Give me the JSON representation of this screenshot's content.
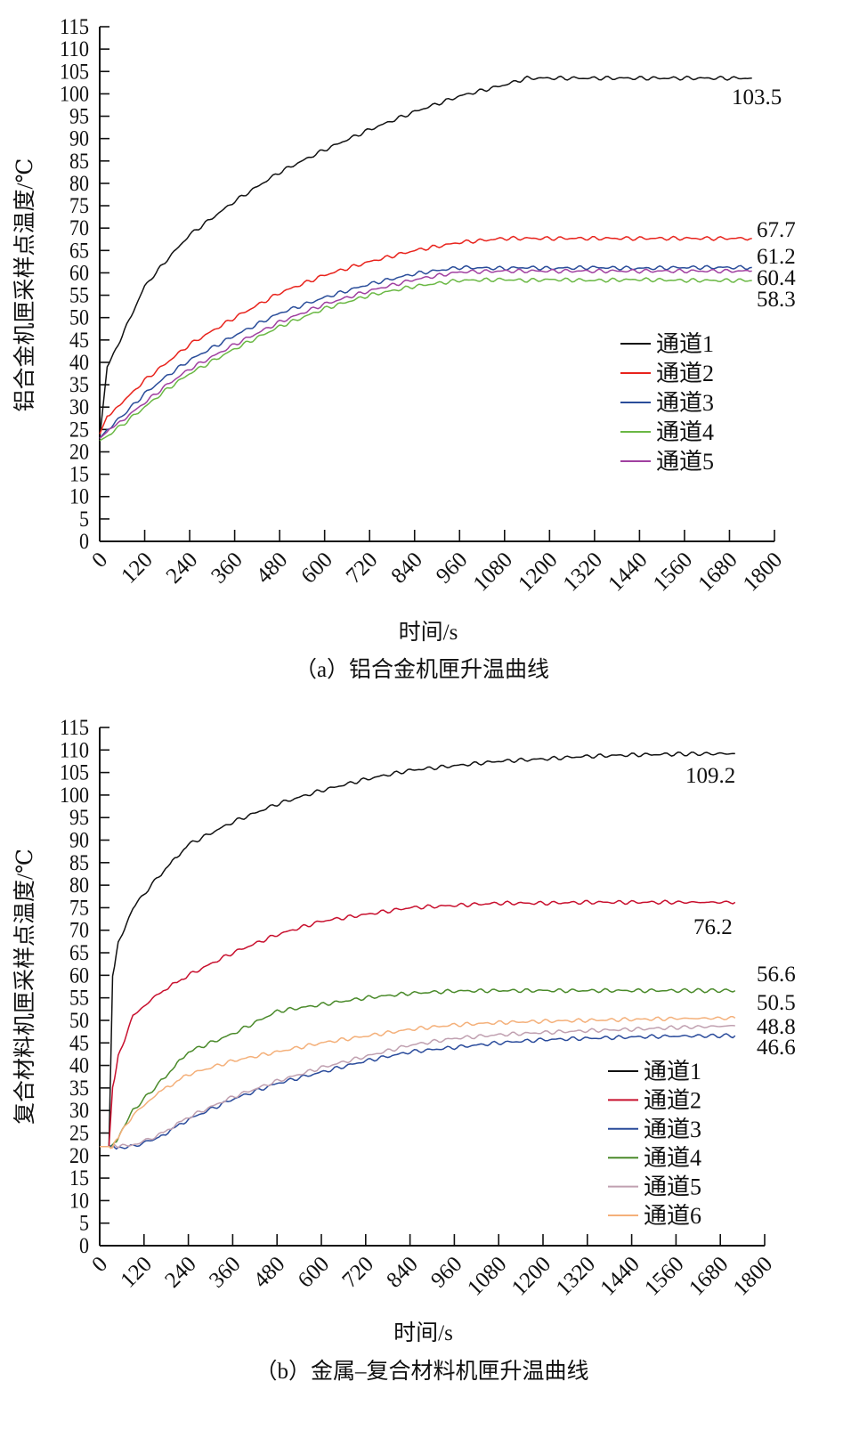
{
  "chart_data": [
    {
      "type": "line",
      "caption": "（a）铝合金机匣升温曲线",
      "xlabel": "时间/s",
      "ylabel": "铝合金机匣采样点温度/℃",
      "xlim": [
        0,
        1800
      ],
      "ylim": [
        0,
        115
      ],
      "xticks": [
        0,
        120,
        240,
        360,
        480,
        600,
        720,
        840,
        960,
        1080,
        1200,
        1320,
        1440,
        1560,
        1680,
        1800
      ],
      "yticks": [
        0,
        5,
        10,
        15,
        20,
        25,
        30,
        35,
        40,
        45,
        50,
        55,
        60,
        65,
        70,
        75,
        80,
        85,
        90,
        95,
        100,
        105,
        110,
        115
      ],
      "grid": false,
      "legend_position": "right-middle",
      "x": [
        0,
        20,
        60,
        120,
        180,
        240,
        360,
        480,
        600,
        720,
        840,
        960,
        1080,
        1140,
        1200,
        1320,
        1440,
        1560,
        1680,
        1740
      ],
      "series": [
        {
          "name": "通道1",
          "color": "#111111",
          "end_label": "103.5",
          "values": [
            23,
            39,
            46,
            57,
            63,
            68.5,
            76,
            82.5,
            87.5,
            92,
            96,
            99.5,
            102,
            103.5,
            103.5,
            103.5,
            103.5,
            103.5,
            103.5,
            103.5
          ]
        },
        {
          "name": "通道2",
          "color": "#e8231c",
          "end_label": "67.7",
          "values": [
            24,
            28,
            31,
            36,
            40,
            44,
            50,
            55.5,
            59.5,
            62.5,
            65,
            66.8,
            67.7,
            67.7,
            67.7,
            67.7,
            67.7,
            67.7,
            67.7,
            67.7
          ]
        },
        {
          "name": "通道3",
          "color": "#2a4d9a",
          "end_label": "61.2",
          "values": [
            23,
            25,
            28,
            33,
            37,
            40.5,
            46,
            51,
            54.5,
            57.5,
            59.8,
            61.2,
            61,
            61.2,
            61,
            61.2,
            61,
            61.2,
            61.2,
            61.2
          ]
        },
        {
          "name": "通道4",
          "color": "#6ab844",
          "end_label": "58.3",
          "values": [
            22.5,
            23.5,
            26,
            30,
            34,
            37.5,
            43,
            48,
            52,
            55,
            57,
            58.3,
            58.5,
            58.3,
            58.5,
            58.3,
            58.5,
            58.3,
            58.3,
            58.3
          ]
        },
        {
          "name": "通道5",
          "color": "#a040a0",
          "end_label": "60.4",
          "values": [
            23,
            24.5,
            27,
            31,
            35,
            38.5,
            44,
            49,
            53,
            56,
            58.5,
            60.2,
            60.4,
            60.4,
            60.4,
            60.4,
            60.4,
            60.4,
            60.4,
            60.4
          ]
        }
      ]
    },
    {
      "type": "line",
      "caption": "（b）金属–复合材料机匣升温曲线",
      "xlabel": "时间/s",
      "ylabel": "复合材料机匣采样点温度/℃",
      "xlim": [
        0,
        1800
      ],
      "ylim": [
        0,
        115
      ],
      "xticks": [
        0,
        120,
        240,
        360,
        480,
        600,
        720,
        840,
        960,
        1080,
        1200,
        1320,
        1440,
        1560,
        1680,
        1800
      ],
      "yticks": [
        0,
        5,
        10,
        15,
        20,
        25,
        30,
        35,
        40,
        45,
        50,
        55,
        60,
        65,
        70,
        75,
        80,
        85,
        90,
        95,
        100,
        105,
        110,
        115
      ],
      "grid": false,
      "legend_position": "bottom-right",
      "x": [
        0,
        25,
        35,
        50,
        90,
        160,
        240,
        360,
        480,
        600,
        720,
        840,
        960,
        1080,
        1200,
        1320,
        1440,
        1560,
        1720
      ],
      "series": [
        {
          "name": "通道1",
          "color": "#111111",
          "end_label": "109.2",
          "values": [
            22,
            22,
            60,
            67,
            75,
            82,
            89,
            94,
            98,
            101,
            103.5,
            105.5,
            106.5,
            107.5,
            108,
            108.6,
            108.9,
            109.1,
            109.2
          ]
        },
        {
          "name": "通道2",
          "color": "#c8102e",
          "end_label": "76.2",
          "values": [
            22,
            22,
            35,
            42,
            51,
            56,
            60,
            65,
            69,
            72,
            73.5,
            75,
            75.5,
            76,
            76,
            76.2,
            76.2,
            76.2,
            76.2
          ]
        },
        {
          "name": "通道3",
          "color": "#2a4b9b",
          "end_label": "46.6",
          "values": [
            22,
            22,
            22,
            21.8,
            22,
            24,
            28,
            32.5,
            36,
            38.5,
            41,
            43,
            44,
            45,
            45.7,
            46,
            46.3,
            46.5,
            46.6
          ]
        },
        {
          "name": "通道4",
          "color": "#4a8a2a",
          "end_label": "56.6",
          "values": [
            22,
            22,
            22,
            24,
            30,
            36,
            43,
            47,
            52,
            53.5,
            55,
            56,
            56.5,
            56.6,
            56.6,
            56.6,
            56.6,
            56.6,
            56.6
          ]
        },
        {
          "name": "通道5",
          "color": "#c0a0b0",
          "end_label": "48.8",
          "values": [
            22,
            22,
            22,
            22,
            22.3,
            24.5,
            28.5,
            33,
            36.5,
            39.5,
            42,
            44.5,
            46,
            46.8,
            47.3,
            47.7,
            48,
            48.4,
            48.8
          ]
        },
        {
          "name": "通道6",
          "color": "#f4b07a",
          "end_label": "50.5",
          "values": [
            22,
            22,
            22,
            24,
            29,
            34,
            38,
            41,
            43,
            45,
            46.5,
            48,
            49,
            49.5,
            49.8,
            50,
            50.2,
            50.4,
            50.5
          ]
        }
      ]
    }
  ]
}
